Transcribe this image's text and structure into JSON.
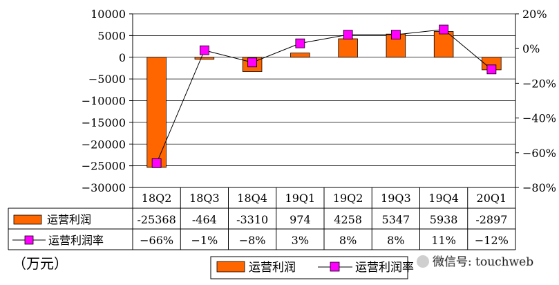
{
  "chart_data": {
    "type": "bar",
    "categories": [
      "18Q2",
      "18Q3",
      "18Q4",
      "19Q1",
      "19Q2",
      "19Q3",
      "19Q4",
      "20Q1"
    ],
    "series": [
      {
        "name": "运营利润",
        "type": "bar",
        "axis": "left",
        "color": "#ff6600",
        "values": [
          -25368,
          -464,
          -3310,
          974,
          4258,
          5347,
          5938,
          -2897
        ],
        "labels": [
          "-25368",
          "-464",
          "-3310",
          "974",
          "4258",
          "5347",
          "5938",
          "-2897"
        ]
      },
      {
        "name": "运营利润率",
        "type": "line",
        "axis": "right",
        "color": "#ff00ff",
        "values": [
          -66,
          -1,
          -8,
          3,
          8,
          8,
          11,
          -12
        ],
        "labels": [
          "-66%",
          "-1%",
          "-8%",
          "3%",
          "8%",
          "8%",
          "11%",
          "-12%"
        ]
      }
    ],
    "ylim_left": [
      -30000,
      10000
    ],
    "ylim_right": [
      -80,
      20
    ],
    "yticks_left": [
      "10000",
      "5000",
      "0",
      "-5000",
      "-10000",
      "-15000",
      "-20000",
      "-25000",
      "-30000"
    ],
    "yticks_right": [
      "20%",
      "0%",
      "-20%",
      "-40%",
      "-60%",
      "-80%"
    ],
    "unit_label": "（万元）",
    "legend": {
      "placement": "bottom",
      "items": [
        "运营利润",
        "运营利润率"
      ]
    },
    "watermark": "微信号: touchweb",
    "grid": true
  }
}
